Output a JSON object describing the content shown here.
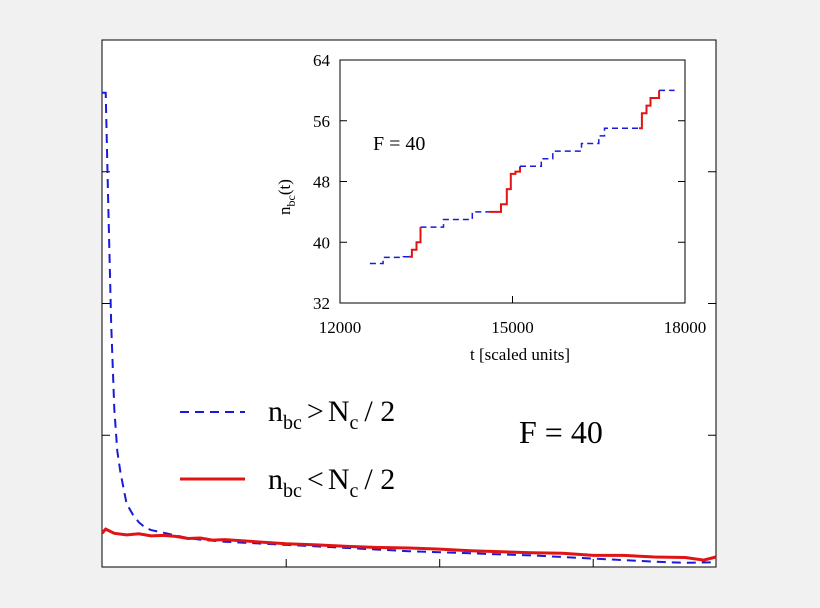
{
  "chart_data": [
    {
      "type": "line",
      "title": "",
      "annotation": "F = 40",
      "xlabel": "",
      "ylabel": "",
      "grid": false,
      "legend_placement": "center-left",
      "xlim": [
        0,
        100
      ],
      "ylim": [
        0,
        100
      ],
      "series": [
        {
          "name": "n_bc > N_c / 2",
          "color": "#1a1adb",
          "style": "dashed",
          "x": [
            0,
            0.6,
            1,
            1.5,
            2,
            2.5,
            3,
            4,
            5,
            6,
            7,
            8,
            10,
            12,
            14,
            16,
            20,
            25,
            30,
            35,
            40,
            45,
            50,
            55,
            60,
            65,
            70,
            75,
            80,
            85,
            90,
            95,
            100
          ],
          "y": [
            90,
            90,
            70,
            46,
            30,
            22,
            18,
            12,
            10,
            8.5,
            7.5,
            7,
            6.5,
            6,
            5.5,
            5.2,
            4.8,
            4.5,
            4.2,
            3.9,
            3.6,
            3.3,
            3.0,
            2.8,
            2.6,
            2.4,
            2.2,
            1.9,
            1.6,
            1.3,
            1.0,
            0.8,
            0.9
          ]
        },
        {
          "name": "n_bc < N_c / 2",
          "color": "#e01414",
          "style": "solid",
          "x": [
            0,
            0.6,
            2,
            4,
            6,
            8,
            10,
            12,
            14,
            16,
            18,
            20,
            25,
            30,
            35,
            40,
            45,
            50,
            55,
            60,
            65,
            70,
            75,
            80,
            85,
            90,
            95,
            98,
            100
          ],
          "y": [
            6.4,
            7.2,
            6.4,
            6.1,
            6.3,
            5.9,
            6.0,
            5.8,
            5.4,
            5.5,
            5.1,
            5.2,
            4.8,
            4.4,
            4.2,
            3.9,
            3.7,
            3.6,
            3.4,
            3.1,
            2.9,
            2.7,
            2.6,
            2.2,
            2.2,
            1.9,
            1.8,
            1.3,
            1.9
          ]
        }
      ],
      "legend": [
        {
          "base": "n",
          "sub1": "bc",
          "op": ">",
          "base2": "N",
          "sub2": "c",
          "tail": "/  2"
        },
        {
          "base": "n",
          "sub1": "bc",
          "op": "<",
          "base2": "N",
          "sub2": "c",
          "tail": "/  2"
        }
      ]
    },
    {
      "type": "line",
      "title": "",
      "annotation": "F = 40",
      "xlabel": "t   [scaled units]",
      "ylabel": {
        "base": "n",
        "sub": "bc",
        "tail": "(t)"
      },
      "grid": false,
      "xlim": [
        12000,
        18000
      ],
      "ylim": [
        32,
        64
      ],
      "xticks": [
        12000,
        15000,
        18000
      ],
      "yticks": [
        32,
        40,
        48,
        56,
        64
      ],
      "xtick_labels": [
        "12000",
        "15000",
        "18000"
      ],
      "ytick_labels": [
        "32",
        "40",
        "48",
        "56",
        "64"
      ],
      "series": [
        {
          "name": "",
          "color": "#1a1adb",
          "style": "dashed",
          "points": [
            [
              12520,
              37.2
            ],
            [
              12750,
              37.2
            ],
            [
              12750,
              38
            ],
            [
              13100,
              38
            ],
            [
              13100,
              38.1
            ],
            [
              13200,
              38.1
            ]
          ]
        },
        {
          "name": "",
          "color": "#e01414",
          "style": "solid",
          "points": [
            [
              13200,
              38.1
            ],
            [
              13250,
              38.1
            ],
            [
              13250,
              39
            ],
            [
              13330,
              39
            ],
            [
              13330,
              40
            ],
            [
              13400,
              40
            ],
            [
              13400,
              42
            ]
          ]
        },
        {
          "name": "",
          "color": "#1a1adb",
          "style": "dashed",
          "points": [
            [
              13400,
              42
            ],
            [
              13800,
              42
            ],
            [
              13800,
              42
            ],
            [
              13800,
              43
            ],
            [
              14300,
              43
            ],
            [
              14300,
              44
            ],
            [
              14600,
              44
            ],
            [
              14600,
              44
            ]
          ]
        },
        {
          "name": "",
          "color": "#e01414",
          "style": "solid",
          "points": [
            [
              14600,
              44
            ],
            [
              14800,
              44
            ],
            [
              14800,
              45
            ],
            [
              14900,
              45
            ],
            [
              14900,
              47
            ],
            [
              14970,
              47
            ],
            [
              14970,
              49
            ],
            [
              15050,
              49
            ],
            [
              15050,
              49.3
            ],
            [
              15130,
              49.3
            ],
            [
              15130,
              50
            ]
          ]
        },
        {
          "name": "",
          "color": "#1a1adb",
          "style": "dashed",
          "points": [
            [
              15130,
              50
            ],
            [
              15500,
              50
            ],
            [
              15500,
              51
            ],
            [
              15700,
              51
            ],
            [
              15700,
              52
            ],
            [
              16200,
              52
            ],
            [
              16200,
              53
            ],
            [
              16500,
              53
            ],
            [
              16500,
              54
            ],
            [
              16600,
              54
            ],
            [
              16600,
              55
            ],
            [
              17200,
              55
            ]
          ]
        },
        {
          "name": "",
          "color": "#e01414",
          "style": "solid",
          "points": [
            [
              17200,
              55
            ],
            [
              17250,
              55
            ],
            [
              17250,
              57
            ],
            [
              17330,
              57
            ],
            [
              17330,
              58
            ],
            [
              17400,
              58
            ],
            [
              17400,
              59
            ],
            [
              17550,
              59
            ],
            [
              17550,
              60
            ]
          ]
        },
        {
          "name": "",
          "color": "#1a1adb",
          "style": "dashed",
          "points": [
            [
              17550,
              60
            ],
            [
              17820,
              60
            ]
          ]
        }
      ]
    }
  ]
}
